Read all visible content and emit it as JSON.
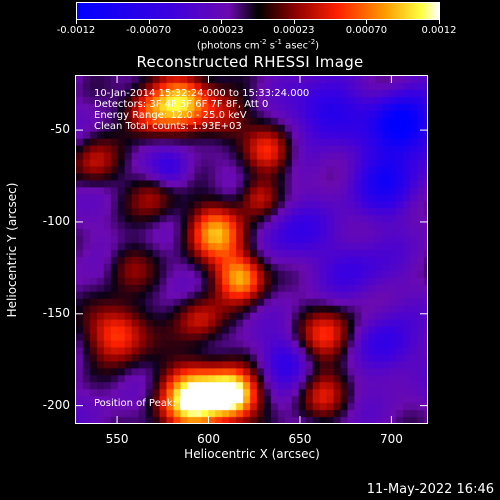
{
  "chart_data": {
    "type": "heatmap",
    "title": "Reconstructed RHESSI Image",
    "xlabel": "Heliocentric X (arcsec)",
    "ylabel": "Heliocentric Y (arcsec)",
    "xlim": [
      527,
      720
    ],
    "ylim": [
      -210,
      -20
    ],
    "x_ticks": [
      550,
      600,
      650,
      700
    ],
    "y_ticks": [
      -50,
      -100,
      -150,
      -200
    ],
    "colorbar": {
      "ticks": [
        "-0.0012",
        "-0.00070",
        "-0.00023",
        "0.00023",
        "0.00070",
        "0.0012"
      ],
      "range": [
        -0.0012,
        0.0012
      ],
      "unit_text": "(photons cm",
      "unit_sup1": "-2",
      "unit_mid1": " s",
      "unit_sup2": "-1",
      "unit_mid2": " asec",
      "unit_sup3": "-2",
      "unit_end": ")"
    },
    "annotations": [
      "10-Jan-2014 15:32:24.000 to 15:33:24.000",
      "Detectors: 3F 4F 5F 6F 7F 8F, Att 0",
      "Energy Range: 12.0 - 25.0 keV",
      "Clean    Total counts: 1.93E+03"
    ],
    "bottom_annotation": "Position of Peak: [611,-197]",
    "grid": false
  },
  "footer": {
    "timestamp": "11-May-2022 16:46"
  }
}
